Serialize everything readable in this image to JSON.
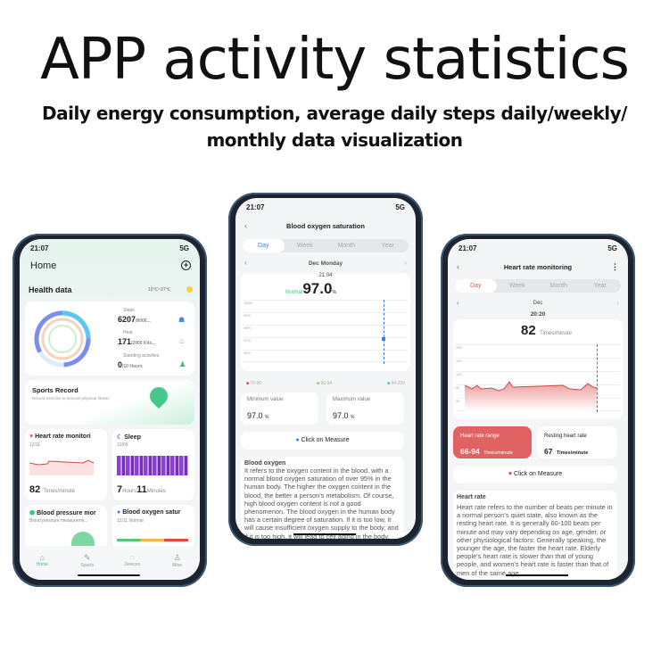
{
  "headline": "APP activity statistics",
  "subtitle_lines": [
    "Daily energy consumption, average daily steps daily/weekly/",
    "monthly data visualization"
  ],
  "colors": {
    "green": "#3cc77f",
    "red": "#e05757",
    "blue": "#3d7be8",
    "purple": "#9b4ee0"
  },
  "home": {
    "time": "21:07",
    "network": "5G",
    "title": "Home",
    "add_icon": "plus-circle-icon",
    "health_title": "Health data",
    "weather": "16℃~27℃",
    "steps": {
      "label": "Steps",
      "value": "6207",
      "goal": "/8000..."
    },
    "heat": {
      "label": "Heat",
      "value": "171",
      "goal": "/2000 Kilo..."
    },
    "standing": {
      "label": "Standing activities",
      "value": "0",
      "goal": "/10 Hours"
    },
    "sports": {
      "title": "Sports Record",
      "desc": "Record exercise to improve physical fitness"
    },
    "heart": {
      "title": "Heart rate monitori",
      "date": "12/11",
      "value": "82",
      "unit": "Times/minute"
    },
    "sleep": {
      "title": "Sleep",
      "date": "12/09",
      "hours": "7",
      "hours_unit": "Hours",
      "minutes": "11",
      "minutes_unit": "Minutes"
    },
    "bp": {
      "title": "Blood pressure mor",
      "desc": "Blood pressure measureme..."
    },
    "oxygen": {
      "title": "Blood oxygen satur",
      "desc": "12/11 Normal"
    },
    "nav": [
      "Home",
      "Sports",
      "Devices",
      "Mine"
    ]
  },
  "oxygen": {
    "time": "21:07",
    "network": "5G",
    "title": "Blood oxygen saturation",
    "tabs": [
      "Day",
      "Week",
      "Month",
      "Year"
    ],
    "active_tab": "Day",
    "date": "Dec Monday",
    "reading_time": "21:04",
    "status": "Normal",
    "value": "97.0",
    "unit": "%",
    "y_ticks": [
      "100%",
      "99%",
      "98%",
      "97%",
      "96%"
    ],
    "legend": [
      "70-90",
      "90-94",
      "94-100"
    ],
    "min_label": "Minimum value",
    "min_value": "97.0",
    "max_label": "Maximum value",
    "max_value": "97.0",
    "measure": "Click on Measure",
    "info_title": "Blood oxygen",
    "info_text": "It refers to the oxygen content in the blood, with a normal blood oxygen saturation of over 95% in the human body. The higher the oxygen content in the blood, the better a person's metabolism. Of course, high blood oxygen content is not a good phenomenon. The blood oxygen in the human body has a certain degree of saturation. If it is too low, it will cause insufficient oxygen supply to the body, and if it is too high, it will lead to cell aging in the body."
  },
  "heart": {
    "time": "21:07",
    "network": "5G",
    "title": "Heart rate monitoring",
    "tabs": [
      "Day",
      "Week",
      "Month",
      "Year"
    ],
    "active_tab": "Day",
    "date": "Dec",
    "reading_time": "20:20",
    "value": "82",
    "unit": "Times/minute",
    "y_ticks": [
      "200",
      "160",
      "120",
      "80",
      "40"
    ],
    "range_label": "Heart rate range",
    "range_value": "66-94",
    "range_unit": "Times/minute",
    "resting_label": "Resting heart rate",
    "resting_value": "67",
    "resting_unit": "Times/minute",
    "measure": "Click on Measure",
    "info_title": "Heart rate",
    "info_text": "Heart rate refers to the number of beats per minute in a normal person's quiet state, also known as the resting heart rate. It is generally 60-100 beats per minute and may vary depending on age, gender, or other physiological factors. Generally speaking, the younger the age, the faster the heart rate. Elderly people's heart rate is slower than that of young people, and women's heart rate is faster than that of men of the same age."
  }
}
